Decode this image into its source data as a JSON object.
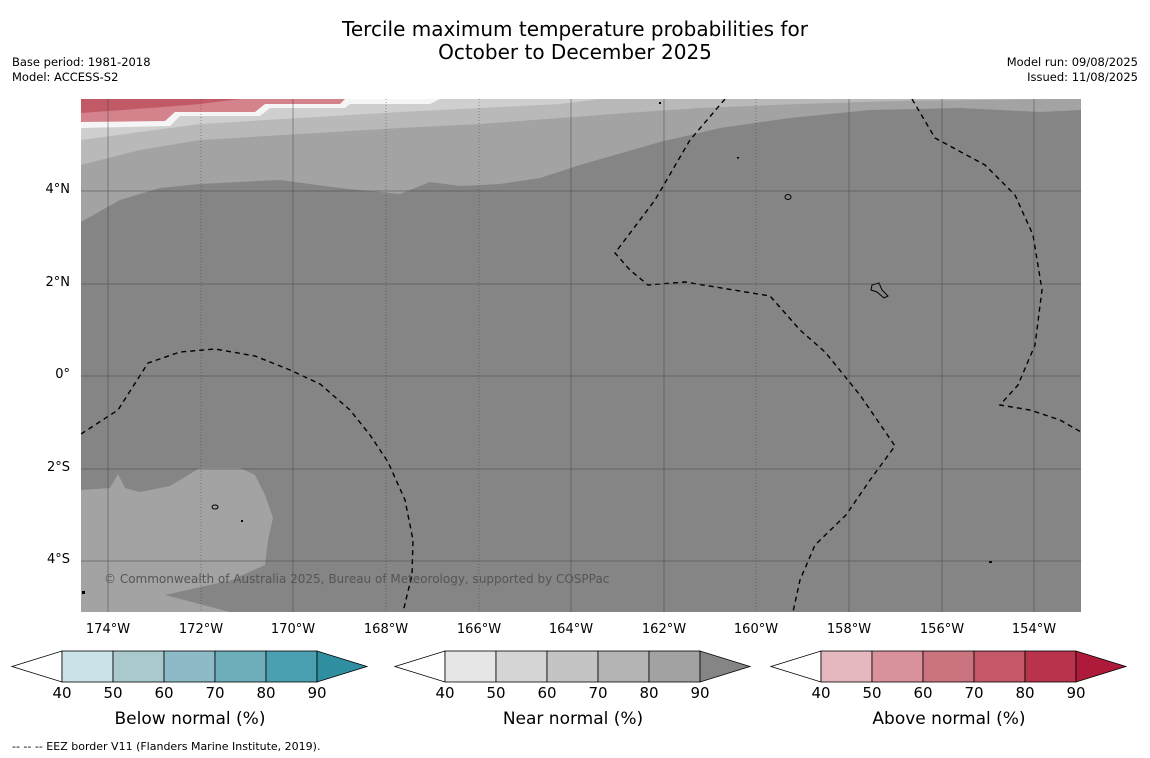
{
  "header": {
    "title_line1": "Tercile maximum temperature probabilities for",
    "title_line2": "October to December 2025",
    "base_period": "Base period: 1981-2018",
    "model": "Model: ACCESS-S2",
    "model_run": "Model run: 09/08/2025",
    "issued": "Issued: 11/08/2025"
  },
  "map": {
    "lat_labels": [
      "4°N",
      "2°N",
      "0°",
      "2°S",
      "4°S"
    ],
    "lon_labels": [
      "174°W",
      "172°W",
      "170°W",
      "168°W",
      "166°W",
      "164°W",
      "162°W",
      "160°W",
      "158°W",
      "156°W",
      "154°W"
    ],
    "credit": "© Commonwealth of Australia 2025, Bureau of Meteorology, supported by COSPPac",
    "colors": {
      "background": "#858585",
      "near_60": "#b9b9b9",
      "near_70": "#a3a3a3",
      "near_50": "#cfcfcf",
      "above_60": "#d4838d",
      "above_70": "#c25a66"
    }
  },
  "colorbars": [
    {
      "title": "Below normal (%)",
      "ticks": [
        "40",
        "50",
        "60",
        "70",
        "80",
        "90"
      ],
      "colors": [
        "#ffffff",
        "#c9e3e9",
        "#a9c9ce",
        "#8cbac6",
        "#6eaebb",
        "#4aa0b0",
        "#2f8ea0"
      ]
    },
    {
      "title": "Near normal (%)",
      "ticks": [
        "40",
        "50",
        "60",
        "70",
        "80",
        "90"
      ],
      "colors": [
        "#ffffff",
        "#e6e6e6",
        "#d5d5d5",
        "#c4c4c4",
        "#b4b4b4",
        "#a2a2a2",
        "#858585"
      ]
    },
    {
      "title": "Above normal (%)",
      "ticks": [
        "40",
        "50",
        "60",
        "70",
        "80",
        "90"
      ],
      "colors": [
        "#ffffff",
        "#e4b8be",
        "#d9929b",
        "#cc7380",
        "#c45768",
        "#b9334c",
        "#ae1b3a"
      ]
    }
  ],
  "footnote": "--  --  -- EEZ border V11 (Flanders Marine Institute, 2019)."
}
